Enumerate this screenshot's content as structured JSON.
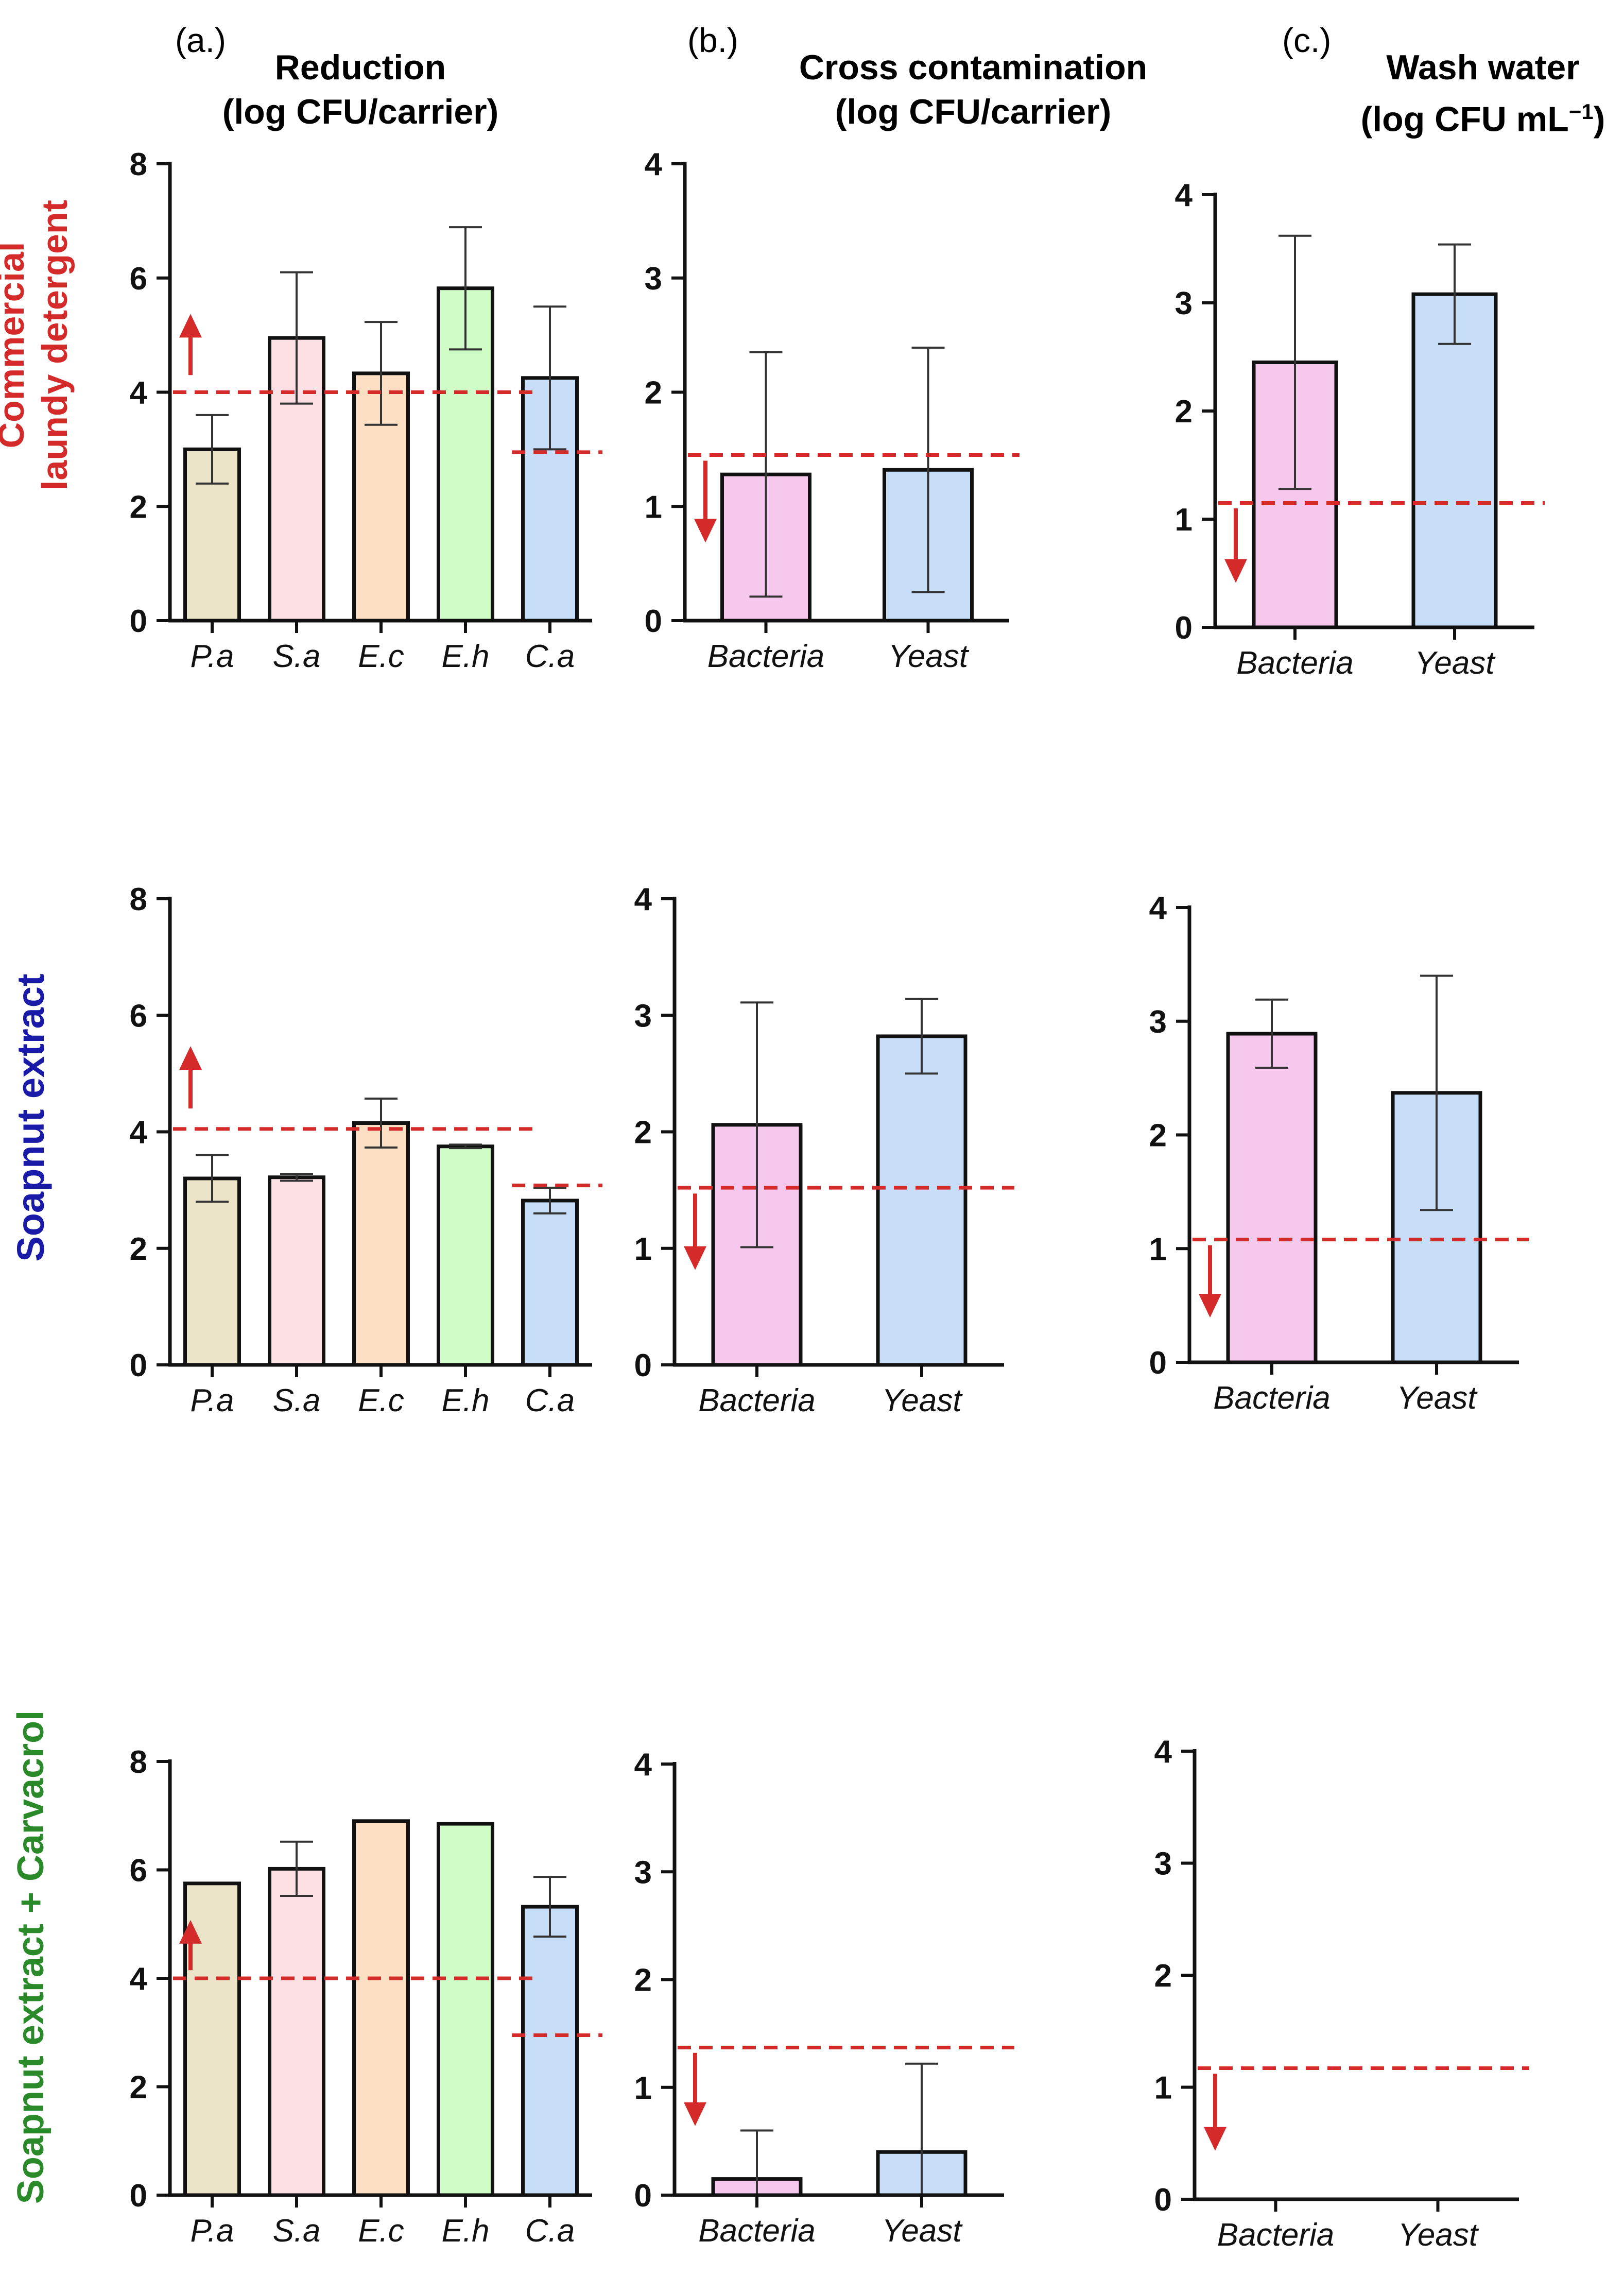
{
  "headers": {
    "a": {
      "letter": "(a.)",
      "title1": "Reduction",
      "title2": "(log CFU/carrier)"
    },
    "b": {
      "letter": "(b.)",
      "title1": "Cross contamination",
      "title2": "(log CFU/carrier)"
    },
    "c": {
      "letter": "(c.)",
      "title1": "Wash water",
      "title2_pre": "(log CFU mL",
      "title2_sup": "−1",
      "title2_post": ")"
    }
  },
  "rows": [
    {
      "label1": "Commercial",
      "label2": "laundy detergent",
      "color": "#d42a2a"
    },
    {
      "label1": "Soapnut extract",
      "label2": "",
      "color": "#1a1aa8"
    },
    {
      "label1": "Soapnut extract + Carvacrol",
      "label2": "",
      "color": "#2a8a2a"
    }
  ],
  "palette": {
    "P.a": "#ebe4c8",
    "S.a": "#fde0e4",
    "E.c": "#fde0c4",
    "E.h": "#d0fcc8",
    "C.a": "#c8ddf7",
    "Bacteria": "#f7c8ee",
    "Yeast": "#c8ddf7",
    "threshold": "#d42a2a"
  },
  "chart_data": [
    {
      "id": "r1a",
      "type": "bar",
      "ylim": [
        0,
        8
      ],
      "ticks": [
        0,
        2,
        4,
        6,
        8
      ],
      "categories": [
        "P.a",
        "S.a",
        "E.c",
        "E.h",
        "C.a"
      ],
      "values": [
        3.0,
        4.95,
        4.33,
        5.82,
        4.25
      ],
      "errors": [
        0.6,
        1.15,
        0.9,
        1.07,
        1.25
      ],
      "thresholds": [
        {
          "value": 4.0,
          "from": 0,
          "to": 4
        },
        {
          "value": 2.95,
          "from": 4,
          "to": 5
        }
      ],
      "arrow": {
        "dir": "up",
        "from": 4.3,
        "to": 5.3
      }
    },
    {
      "id": "r1b",
      "type": "bar",
      "ylim": [
        0,
        4
      ],
      "ticks": [
        0,
        1,
        2,
        3,
        4
      ],
      "categories": [
        "Bacteria",
        "Yeast"
      ],
      "values": [
        1.28,
        1.32
      ],
      "errors": [
        1.07,
        1.07
      ],
      "thresholds": [
        {
          "value": 1.45,
          "from": 0,
          "to": 2
        }
      ],
      "arrow": {
        "dir": "down",
        "from": 1.4,
        "to": 0.72
      }
    },
    {
      "id": "r1c",
      "type": "bar",
      "ylim": [
        0,
        4
      ],
      "ticks": [
        0,
        1,
        2,
        3,
        4
      ],
      "categories": [
        "Bacteria",
        "Yeast"
      ],
      "values": [
        2.45,
        3.08
      ],
      "errors": [
        1.17,
        0.46
      ],
      "thresholds": [
        {
          "value": 1.15,
          "from": 0,
          "to": 2
        }
      ],
      "arrow": {
        "dir": "down",
        "from": 1.1,
        "to": 0.45
      }
    },
    {
      "id": "r2a",
      "type": "bar",
      "ylim": [
        0,
        8
      ],
      "ticks": [
        0,
        2,
        4,
        6,
        8
      ],
      "categories": [
        "P.a",
        "S.a",
        "E.c",
        "E.h",
        "C.a"
      ],
      "values": [
        3.2,
        3.22,
        4.15,
        3.75,
        2.82
      ],
      "errors": [
        0.4,
        0.06,
        0.42,
        0.03,
        0.22
      ],
      "thresholds": [
        {
          "value": 4.05,
          "from": 0,
          "to": 4
        },
        {
          "value": 3.08,
          "from": 4,
          "to": 5
        }
      ],
      "arrow": {
        "dir": "up",
        "from": 4.4,
        "to": 5.4
      }
    },
    {
      "id": "r2b",
      "type": "bar",
      "ylim": [
        0,
        4
      ],
      "ticks": [
        0,
        1,
        2,
        3,
        4
      ],
      "categories": [
        "Bacteria",
        "Yeast"
      ],
      "values": [
        2.06,
        2.82
      ],
      "errors": [
        1.05,
        0.32
      ],
      "thresholds": [
        {
          "value": 1.52,
          "from": 0,
          "to": 2
        }
      ],
      "arrow": {
        "dir": "down",
        "from": 1.47,
        "to": 0.85
      }
    },
    {
      "id": "r2c",
      "type": "bar",
      "ylim": [
        0,
        4
      ],
      "ticks": [
        0,
        1,
        2,
        3,
        4
      ],
      "categories": [
        "Bacteria",
        "Yeast"
      ],
      "values": [
        2.89,
        2.37
      ],
      "errors": [
        0.3,
        1.03
      ],
      "thresholds": [
        {
          "value": 1.08,
          "from": 0,
          "to": 2
        }
      ],
      "arrow": {
        "dir": "down",
        "from": 1.03,
        "to": 0.43
      }
    },
    {
      "id": "r3a",
      "type": "bar",
      "ylim": [
        0,
        8
      ],
      "ticks": [
        0,
        2,
        4,
        6,
        8
      ],
      "categories": [
        "P.a",
        "S.a",
        "E.c",
        "E.h",
        "C.a"
      ],
      "values": [
        5.75,
        6.02,
        6.9,
        6.85,
        5.32
      ],
      "errors": [
        0,
        0.5,
        0,
        0,
        0.55
      ],
      "thresholds": [
        {
          "value": 4.0,
          "from": 0,
          "to": 4
        },
        {
          "value": 2.95,
          "from": 4,
          "to": 5
        }
      ],
      "arrow": {
        "dir": "up",
        "from": 4.15,
        "to": 5.0
      }
    },
    {
      "id": "r3b",
      "type": "bar",
      "ylim": [
        0,
        4
      ],
      "ticks": [
        0,
        1,
        2,
        3,
        4
      ],
      "categories": [
        "Bacteria",
        "Yeast"
      ],
      "values": [
        0.15,
        0.4
      ],
      "errors": [
        0.45,
        0.82
      ],
      "thresholds": [
        {
          "value": 1.37,
          "from": 0,
          "to": 2
        }
      ],
      "arrow": {
        "dir": "down",
        "from": 1.32,
        "to": 0.68
      }
    },
    {
      "id": "r3c",
      "type": "bar",
      "ylim": [
        0,
        4
      ],
      "ticks": [
        0,
        1,
        2,
        3,
        4
      ],
      "categories": [
        "Bacteria",
        "Yeast"
      ],
      "values": [
        0,
        0
      ],
      "errors": [
        0,
        0
      ],
      "thresholds": [
        {
          "value": 1.17,
          "from": 0,
          "to": 2
        }
      ],
      "arrow": {
        "dir": "down",
        "from": 1.12,
        "to": 0.47
      }
    }
  ]
}
